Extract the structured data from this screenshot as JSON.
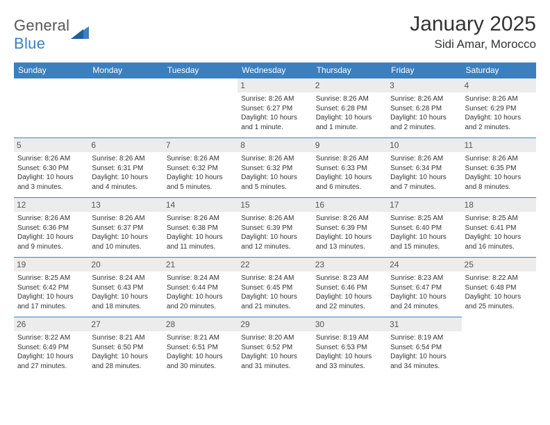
{
  "logo": {
    "part1": "General",
    "part2": "Blue"
  },
  "header": {
    "title": "January 2025",
    "subtitle": "Sidi Amar, Morocco"
  },
  "colors": {
    "primary_blue": "#3b7fbf",
    "light_gray": "#ececec",
    "text": "#333333",
    "muted_text": "#555555",
    "white": "#ffffff"
  },
  "calendar": {
    "type": "table",
    "columns": [
      "Sunday",
      "Monday",
      "Tuesday",
      "Wednesday",
      "Thursday",
      "Friday",
      "Saturday"
    ],
    "rows": [
      [
        null,
        null,
        null,
        {
          "day": "1",
          "sunrise": "Sunrise: 8:26 AM",
          "sunset": "Sunset: 6:27 PM",
          "daylight": "Daylight: 10 hours and 1 minute."
        },
        {
          "day": "2",
          "sunrise": "Sunrise: 8:26 AM",
          "sunset": "Sunset: 6:28 PM",
          "daylight": "Daylight: 10 hours and 1 minute."
        },
        {
          "day": "3",
          "sunrise": "Sunrise: 8:26 AM",
          "sunset": "Sunset: 6:28 PM",
          "daylight": "Daylight: 10 hours and 2 minutes."
        },
        {
          "day": "4",
          "sunrise": "Sunrise: 8:26 AM",
          "sunset": "Sunset: 6:29 PM",
          "daylight": "Daylight: 10 hours and 2 minutes."
        }
      ],
      [
        {
          "day": "5",
          "sunrise": "Sunrise: 8:26 AM",
          "sunset": "Sunset: 6:30 PM",
          "daylight": "Daylight: 10 hours and 3 minutes."
        },
        {
          "day": "6",
          "sunrise": "Sunrise: 8:26 AM",
          "sunset": "Sunset: 6:31 PM",
          "daylight": "Daylight: 10 hours and 4 minutes."
        },
        {
          "day": "7",
          "sunrise": "Sunrise: 8:26 AM",
          "sunset": "Sunset: 6:32 PM",
          "daylight": "Daylight: 10 hours and 5 minutes."
        },
        {
          "day": "8",
          "sunrise": "Sunrise: 8:26 AM",
          "sunset": "Sunset: 6:32 PM",
          "daylight": "Daylight: 10 hours and 5 minutes."
        },
        {
          "day": "9",
          "sunrise": "Sunrise: 8:26 AM",
          "sunset": "Sunset: 6:33 PM",
          "daylight": "Daylight: 10 hours and 6 minutes."
        },
        {
          "day": "10",
          "sunrise": "Sunrise: 8:26 AM",
          "sunset": "Sunset: 6:34 PM",
          "daylight": "Daylight: 10 hours and 7 minutes."
        },
        {
          "day": "11",
          "sunrise": "Sunrise: 8:26 AM",
          "sunset": "Sunset: 6:35 PM",
          "daylight": "Daylight: 10 hours and 8 minutes."
        }
      ],
      [
        {
          "day": "12",
          "sunrise": "Sunrise: 8:26 AM",
          "sunset": "Sunset: 6:36 PM",
          "daylight": "Daylight: 10 hours and 9 minutes."
        },
        {
          "day": "13",
          "sunrise": "Sunrise: 8:26 AM",
          "sunset": "Sunset: 6:37 PM",
          "daylight": "Daylight: 10 hours and 10 minutes."
        },
        {
          "day": "14",
          "sunrise": "Sunrise: 8:26 AM",
          "sunset": "Sunset: 6:38 PM",
          "daylight": "Daylight: 10 hours and 11 minutes."
        },
        {
          "day": "15",
          "sunrise": "Sunrise: 8:26 AM",
          "sunset": "Sunset: 6:39 PM",
          "daylight": "Daylight: 10 hours and 12 minutes."
        },
        {
          "day": "16",
          "sunrise": "Sunrise: 8:26 AM",
          "sunset": "Sunset: 6:39 PM",
          "daylight": "Daylight: 10 hours and 13 minutes."
        },
        {
          "day": "17",
          "sunrise": "Sunrise: 8:25 AM",
          "sunset": "Sunset: 6:40 PM",
          "daylight": "Daylight: 10 hours and 15 minutes."
        },
        {
          "day": "18",
          "sunrise": "Sunrise: 8:25 AM",
          "sunset": "Sunset: 6:41 PM",
          "daylight": "Daylight: 10 hours and 16 minutes."
        }
      ],
      [
        {
          "day": "19",
          "sunrise": "Sunrise: 8:25 AM",
          "sunset": "Sunset: 6:42 PM",
          "daylight": "Daylight: 10 hours and 17 minutes."
        },
        {
          "day": "20",
          "sunrise": "Sunrise: 8:24 AM",
          "sunset": "Sunset: 6:43 PM",
          "daylight": "Daylight: 10 hours and 18 minutes."
        },
        {
          "day": "21",
          "sunrise": "Sunrise: 8:24 AM",
          "sunset": "Sunset: 6:44 PM",
          "daylight": "Daylight: 10 hours and 20 minutes."
        },
        {
          "day": "22",
          "sunrise": "Sunrise: 8:24 AM",
          "sunset": "Sunset: 6:45 PM",
          "daylight": "Daylight: 10 hours and 21 minutes."
        },
        {
          "day": "23",
          "sunrise": "Sunrise: 8:23 AM",
          "sunset": "Sunset: 6:46 PM",
          "daylight": "Daylight: 10 hours and 22 minutes."
        },
        {
          "day": "24",
          "sunrise": "Sunrise: 8:23 AM",
          "sunset": "Sunset: 6:47 PM",
          "daylight": "Daylight: 10 hours and 24 minutes."
        },
        {
          "day": "25",
          "sunrise": "Sunrise: 8:22 AM",
          "sunset": "Sunset: 6:48 PM",
          "daylight": "Daylight: 10 hours and 25 minutes."
        }
      ],
      [
        {
          "day": "26",
          "sunrise": "Sunrise: 8:22 AM",
          "sunset": "Sunset: 6:49 PM",
          "daylight": "Daylight: 10 hours and 27 minutes."
        },
        {
          "day": "27",
          "sunrise": "Sunrise: 8:21 AM",
          "sunset": "Sunset: 6:50 PM",
          "daylight": "Daylight: 10 hours and 28 minutes."
        },
        {
          "day": "28",
          "sunrise": "Sunrise: 8:21 AM",
          "sunset": "Sunset: 6:51 PM",
          "daylight": "Daylight: 10 hours and 30 minutes."
        },
        {
          "day": "29",
          "sunrise": "Sunrise: 8:20 AM",
          "sunset": "Sunset: 6:52 PM",
          "daylight": "Daylight: 10 hours and 31 minutes."
        },
        {
          "day": "30",
          "sunrise": "Sunrise: 8:19 AM",
          "sunset": "Sunset: 6:53 PM",
          "daylight": "Daylight: 10 hours and 33 minutes."
        },
        {
          "day": "31",
          "sunrise": "Sunrise: 8:19 AM",
          "sunset": "Sunset: 6:54 PM",
          "daylight": "Daylight: 10 hours and 34 minutes."
        },
        null
      ]
    ]
  }
}
